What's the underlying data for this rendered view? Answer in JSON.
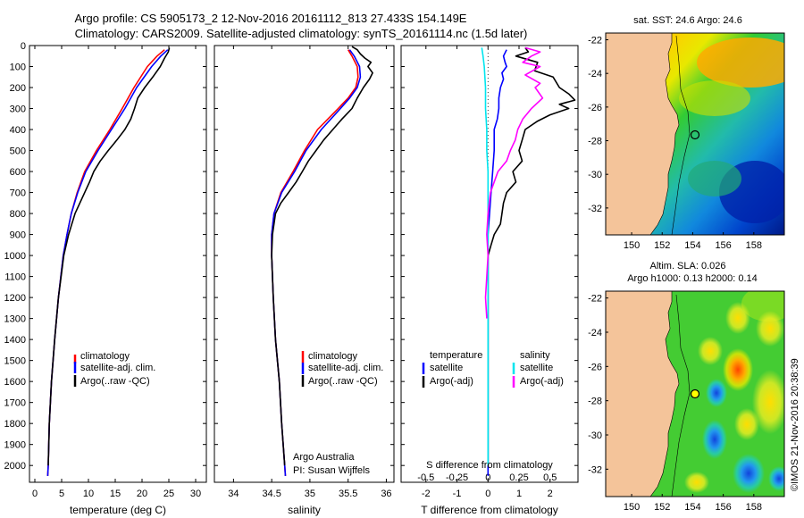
{
  "titles": {
    "line1": "Argo profile: CS 5905173_2 12-Nov-2016 20161112_813 27.433S 154.149E",
    "line2": "Climatology: CARS2009. Satellite-adjusted climatology: synTS_20161114.nc (1.5d later)"
  },
  "colors": {
    "climatology": "#ff0000",
    "satellite": "#0000ff",
    "argo": "#000000",
    "sal_satellite": "#00e5ee",
    "sal_argo": "#ff00ff",
    "land": "#f4c49a"
  },
  "chart_data": [
    {
      "type": "line",
      "id": "temperature",
      "xlabel": "temperature (deg C)",
      "ylabel": "",
      "xlim": [
        -1,
        32
      ],
      "ylim": [
        2080,
        0
      ],
      "xticks": [
        0,
        5,
        10,
        15,
        20,
        25,
        30
      ],
      "xtick_labels": [
        "0",
        "5",
        "10",
        "15",
        "20",
        "25",
        "30"
      ],
      "yticks": [
        0,
        100,
        200,
        300,
        400,
        500,
        600,
        700,
        800,
        900,
        1000,
        1100,
        1200,
        1300,
        1400,
        1500,
        1600,
        1700,
        1800,
        1900,
        2000
      ],
      "ytick_labels": [
        "0",
        "100",
        "200",
        "300",
        "400",
        "500",
        "600",
        "700",
        "800",
        "900",
        "1000",
        "1100",
        "1200",
        "1300",
        "1400",
        "1500",
        "1600",
        "1700",
        "1800",
        "1900",
        "2000"
      ],
      "legend": [
        "climatology",
        "satellite-adj. clim.",
        "Argo(..raw -QC)"
      ],
      "legend_position": "lower-right",
      "series": [
        {
          "name": "climatology",
          "color_key": "climatology",
          "depth": [
            20,
            50,
            100,
            200,
            300,
            400,
            500,
            600,
            700,
            800,
            900,
            1000,
            1200,
            1400,
            1600,
            1800,
            2000,
            2050
          ],
          "values": [
            24.2,
            22.8,
            21.0,
            18.5,
            16.3,
            14.0,
            11.5,
            9.3,
            7.9,
            6.8,
            6.0,
            5.3,
            4.4,
            3.7,
            3.1,
            2.7,
            2.5,
            2.4
          ]
        },
        {
          "name": "satellite-adj. clim.",
          "color_key": "satellite",
          "depth": [
            20,
            50,
            100,
            200,
            300,
            400,
            500,
            600,
            700,
            800,
            900,
            1000,
            1200,
            1400,
            1600,
            1800,
            2000,
            2050
          ],
          "values": [
            24.8,
            23.5,
            21.8,
            19.0,
            16.8,
            14.3,
            11.8,
            9.5,
            8.0,
            6.8,
            6.0,
            5.3,
            4.4,
            3.7,
            3.1,
            2.7,
            2.5,
            2.4
          ]
        },
        {
          "name": "Argo(..raw -QC)",
          "color_key": "argo",
          "depth": [
            10,
            30,
            60,
            100,
            150,
            200,
            250,
            300,
            350,
            400,
            450,
            500,
            550,
            600,
            650,
            700,
            800,
            900,
            1000,
            1200,
            1400,
            1600,
            1800,
            2000
          ],
          "values": [
            25.1,
            24.9,
            24.2,
            23.4,
            22.0,
            20.5,
            19.2,
            18.6,
            17.9,
            16.8,
            15.3,
            13.7,
            12.2,
            11.0,
            10.2,
            9.3,
            7.5,
            6.3,
            5.4,
            4.4,
            3.7,
            3.1,
            2.7,
            2.5
          ]
        }
      ]
    },
    {
      "type": "line",
      "id": "salinity",
      "xlabel": "salinity",
      "ylabel": "",
      "xlim": [
        33.75,
        36.1
      ],
      "ylim": [
        2080,
        0
      ],
      "xticks": [
        34,
        34.5,
        35,
        35.5,
        36
      ],
      "xtick_labels": [
        "34",
        "34.5",
        "35",
        "35.5",
        "36"
      ],
      "legend": [
        "climatology",
        "satellite-adj. clim.",
        "Argo(..raw -QC)"
      ],
      "legend_position": "lower-right",
      "annotation": [
        "Argo Australia",
        "PI: Susan Wijffels"
      ],
      "series": [
        {
          "name": "climatology",
          "color_key": "climatology",
          "depth": [
            20,
            50,
            100,
            150,
            200,
            250,
            300,
            400,
            500,
            600,
            700,
            800,
            900,
            1000,
            1100,
            1200,
            1400,
            1600,
            1800,
            2000,
            2050
          ],
          "values": [
            35.5,
            35.55,
            35.62,
            35.63,
            35.6,
            35.5,
            35.37,
            35.1,
            34.93,
            34.78,
            34.62,
            34.53,
            34.5,
            34.5,
            34.51,
            34.52,
            34.55,
            34.6,
            34.63,
            34.67,
            34.68
          ]
        },
        {
          "name": "satellite-adj. clim.",
          "color_key": "satellite",
          "depth": [
            20,
            50,
            100,
            150,
            200,
            250,
            300,
            400,
            500,
            600,
            700,
            800,
            900,
            1000,
            1100,
            1200,
            1400,
            1600,
            1800,
            2000,
            2050
          ],
          "values": [
            35.52,
            35.58,
            35.65,
            35.66,
            35.62,
            35.52,
            35.4,
            35.15,
            34.95,
            34.8,
            34.63,
            34.53,
            34.5,
            34.5,
            34.51,
            34.52,
            34.55,
            34.6,
            34.63,
            34.67,
            34.68
          ]
        },
        {
          "name": "Argo(..raw -QC)",
          "color_key": "argo",
          "depth": [
            5,
            20,
            40,
            60,
            80,
            100,
            130,
            160,
            200,
            250,
            300,
            350,
            400,
            450,
            500,
            550,
            600,
            650,
            700,
            750,
            800,
            900,
            1000,
            1100,
            1200,
            1400,
            1600,
            1800,
            2000
          ],
          "values": [
            35.55,
            35.62,
            35.66,
            35.72,
            35.8,
            35.76,
            35.82,
            35.78,
            35.7,
            35.62,
            35.55,
            35.42,
            35.3,
            35.18,
            35.08,
            34.98,
            34.9,
            34.82,
            34.72,
            34.62,
            34.55,
            34.51,
            34.5,
            34.51,
            34.52,
            34.55,
            34.6,
            34.63,
            34.67
          ]
        }
      ]
    },
    {
      "type": "line",
      "id": "difference",
      "xlabel": "T difference from climatology",
      "xlabel2": "S difference from climatology",
      "ylabel": "",
      "xlim": [
        -2.8,
        2.9
      ],
      "ylim": [
        2080,
        0
      ],
      "xticks_T": [
        -2,
        -1,
        0,
        1,
        2
      ],
      "xtick_labels_T": [
        "-2",
        "-1",
        "0",
        "1",
        "2"
      ],
      "xticks_S": [
        -0.5,
        -0.25,
        0,
        0.25,
        0.5
      ],
      "xtick_labels_S": [
        "-0.5",
        "-0.25",
        "0",
        "0.25",
        "0.5"
      ],
      "legend_T_title": "temperature",
      "legend_T": [
        "satellite",
        "Argo(-adj)"
      ],
      "legend_S_title": "salinity",
      "legend_S": [
        "satellite",
        "Argo(-adj)"
      ],
      "series": [
        {
          "name": "T satellite",
          "color_key": "satellite",
          "depth": [
            20,
            50,
            80,
            100,
            130,
            160,
            200,
            250,
            300,
            350,
            400,
            500,
            600,
            700,
            800,
            900,
            1000,
            1200,
            1500,
            1800,
            2050
          ],
          "values": [
            0.6,
            0.5,
            0.55,
            0.6,
            0.45,
            0.5,
            0.4,
            0.35,
            0.35,
            0.3,
            0.2,
            0.2,
            0.15,
            0.1,
            0.05,
            0.0,
            0.0,
            0.0,
            0.0,
            0.0,
            0.0
          ]
        },
        {
          "name": "T Argo(-adj)",
          "color_key": "argo",
          "depth": [
            10,
            30,
            50,
            80,
            120,
            150,
            200,
            230,
            260,
            280,
            300,
            330,
            360,
            400,
            450,
            500,
            550,
            600,
            650,
            700,
            750,
            800,
            850,
            900,
            950,
            1000,
            1200,
            1400,
            1600,
            1800,
            2000
          ],
          "values": [
            1.2,
            1.3,
            0.9,
            1.6,
            1.5,
            2.1,
            2.3,
            2.6,
            2.8,
            2.3,
            2.6,
            2.0,
            1.6,
            1.2,
            1.1,
            1.0,
            1.1,
            0.8,
            0.9,
            0.6,
            0.5,
            0.45,
            0.4,
            0.2,
            0.1,
            0.0,
            0.0,
            0.0,
            0.0,
            0.0,
            0.0
          ]
        },
        {
          "name": "S satellite",
          "color_key": "sal_satellite",
          "depth": [
            10,
            50,
            100,
            200,
            300,
            400,
            500,
            600,
            700,
            800,
            900,
            1000,
            1200,
            1500,
            2000
          ],
          "values": [
            -0.05,
            -0.04,
            -0.03,
            -0.02,
            -0.02,
            -0.01,
            -0.01,
            0.0,
            0.0,
            0.0,
            0.0,
            0.0,
            0.0,
            0.0,
            0.0
          ]
        },
        {
          "name": "S Argo(-adj)",
          "color_key": "sal_argo",
          "depth": [
            10,
            30,
            50,
            80,
            100,
            140,
            180,
            200,
            250,
            300,
            350,
            400,
            450,
            500,
            550,
            600,
            650,
            700,
            800,
            900,
            1000,
            1200,
            1300
          ],
          "values": [
            0.3,
            0.42,
            0.35,
            0.28,
            0.42,
            0.3,
            0.42,
            0.38,
            0.44,
            0.35,
            0.28,
            0.24,
            0.22,
            0.18,
            0.15,
            0.08,
            0.05,
            0.02,
            0.0,
            -0.01,
            0.0,
            -0.02,
            -0.01
          ]
        }
      ]
    },
    {
      "type": "heatmap",
      "id": "sst_map",
      "title": "sat. SST: 24.6  Argo: 24.6",
      "xticks": [
        150,
        152,
        154,
        156,
        158
      ],
      "xtick_labels": [
        "150",
        "152",
        "154",
        "156",
        "158"
      ],
      "yticks": [
        -22,
        -24,
        -26,
        -28,
        -30,
        -32
      ],
      "ytick_labels": [
        "-22",
        "-24",
        "-26",
        "-28",
        "-30",
        "-32"
      ],
      "xlim": [
        148.3,
        160
      ],
      "ylim": [
        -33.6,
        -21.6
      ],
      "float_position": [
        154.149,
        -27.433
      ]
    },
    {
      "type": "heatmap",
      "id": "sla_map",
      "title": "Altim. SLA: 0.026",
      "subtitle": "Argo h1000: 0.13 h2000: 0.14",
      "xticks": [
        150,
        152,
        154,
        156,
        158
      ],
      "xtick_labels": [
        "150",
        "152",
        "154",
        "156",
        "158"
      ],
      "yticks": [
        -22,
        -24,
        -26,
        -28,
        -30,
        -32
      ],
      "ytick_labels": [
        "-22",
        "-24",
        "-26",
        "-28",
        "-30",
        "-32"
      ],
      "xlim": [
        148.3,
        160
      ],
      "ylim": [
        -33.6,
        -21.6
      ],
      "float_position": [
        154.149,
        -27.433
      ]
    }
  ],
  "footer": {
    "stamp": "©IMOS 21-Nov-2016 20:38:39"
  }
}
